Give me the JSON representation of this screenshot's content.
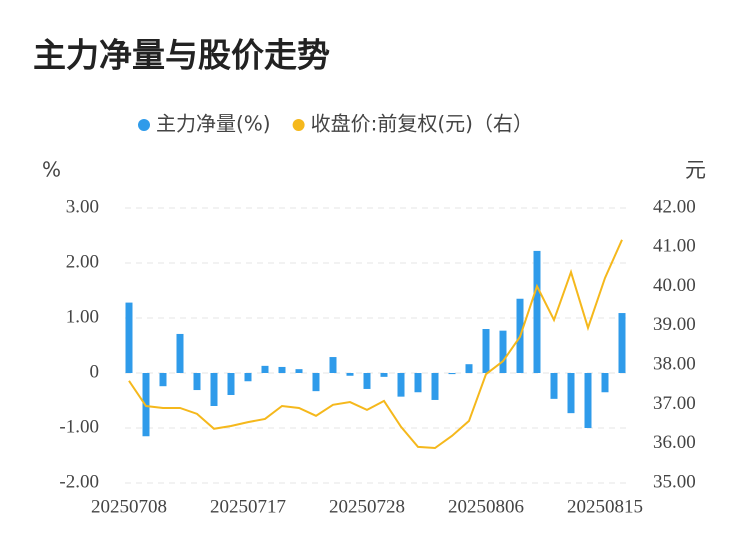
{
  "chart_data": {
    "type": "bar_line",
    "title": "主力净量与股价走势",
    "y_label": "%",
    "y2_label": "元",
    "categories": [
      "20250708",
      null,
      null,
      null,
      null,
      null,
      null,
      "20250717",
      null,
      null,
      null,
      null,
      null,
      null,
      "20250728",
      null,
      null,
      null,
      null,
      null,
      null,
      "20250806",
      null,
      null,
      null,
      null,
      null,
      null,
      "20250815",
      null
    ],
    "series": [
      {
        "name": "主力净量(%)",
        "color": "#2f9bea",
        "type": "bar",
        "values": [
          1.28,
          -1.15,
          -0.24,
          0.71,
          -0.31,
          -0.6,
          -0.4,
          -0.15,
          0.13,
          0.11,
          0.07,
          -0.33,
          0.29,
          -0.05,
          -0.29,
          -0.07,
          -0.43,
          -0.35,
          -0.49,
          -0.02,
          0.16,
          0.8,
          0.77,
          1.35,
          2.22,
          -0.47,
          -0.73,
          -1.0,
          -0.35,
          1.09
        ]
      },
      {
        "name": "收盘价:前复权(元)（右）",
        "color": "#f5b81c",
        "type": "line",
        "axis": "y2",
        "values": [
          37.6,
          36.96,
          36.91,
          36.91,
          36.76,
          36.38,
          36.45,
          36.55,
          36.63,
          36.96,
          36.91,
          36.71,
          36.99,
          37.06,
          36.86,
          37.09,
          36.43,
          35.92,
          35.89,
          36.2,
          36.58,
          37.77,
          38.1,
          38.72,
          40.01,
          39.15,
          40.37,
          38.95,
          40.22,
          41.19
        ]
      }
    ],
    "ylim": [
      -2,
      3
    ],
    "yticks": [
      {
        "value": -2,
        "label": "-2.00"
      },
      {
        "value": -1,
        "label": "-1.00"
      },
      0,
      {
        "value": 1,
        "label": "1.00"
      },
      {
        "value": 2,
        "label": "2.00"
      },
      {
        "value": 3,
        "label": "3.00"
      }
    ],
    "y2lim": [
      35,
      42
    ],
    "y2ticks": [
      {
        "value": 35,
        "label": "35.00"
      },
      {
        "value": 36,
        "label": "36.00"
      },
      {
        "value": 37,
        "label": "37.00"
      },
      {
        "value": 38,
        "label": "38.00"
      },
      {
        "value": 39,
        "label": "39.00"
      },
      {
        "value": 40,
        "label": "40.00"
      },
      {
        "value": 41,
        "label": "41.00"
      },
      {
        "value": 42,
        "label": "42.00"
      }
    ],
    "grid": true
  }
}
